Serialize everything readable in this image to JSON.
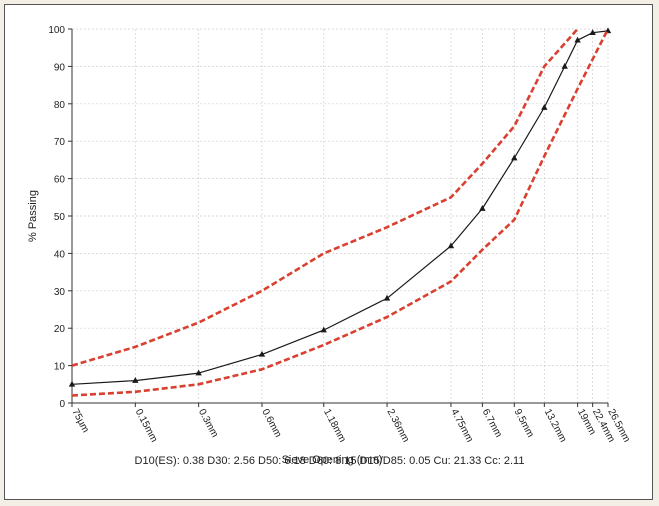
{
  "chart_data": {
    "type": "line",
    "xlabel": "Sieve Opening (mm)",
    "ylabel": "% Passing",
    "ylim": [
      0,
      100
    ],
    "yticks": [
      0,
      10,
      20,
      30,
      40,
      50,
      60,
      70,
      80,
      90,
      100
    ],
    "x_scale": "log",
    "x_ticks": [
      {
        "label": "75µm",
        "mm": 0.075
      },
      {
        "label": "0.15mm",
        "mm": 0.15
      },
      {
        "label": "0.3mm",
        "mm": 0.3
      },
      {
        "label": "0.6mm",
        "mm": 0.6
      },
      {
        "label": "1.18mm",
        "mm": 1.18
      },
      {
        "label": "2.36mm",
        "mm": 2.36
      },
      {
        "label": "4.75mm",
        "mm": 4.75
      },
      {
        "label": "6.7mm",
        "mm": 6.7
      },
      {
        "label": "9.5mm",
        "mm": 9.5
      },
      {
        "label": "13.2mm",
        "mm": 13.2
      },
      {
        "label": "19mm",
        "mm": 19
      },
      {
        "label": "22.4mm",
        "mm": 22.4
      },
      {
        "label": "26.5mm",
        "mm": 26.5
      }
    ],
    "grid": true,
    "series": [
      {
        "color": "#1a1a1a",
        "style": "solid",
        "marker": "triangle",
        "points": [
          [
            0.075,
            5
          ],
          [
            0.15,
            6
          ],
          [
            0.3,
            8
          ],
          [
            0.6,
            13
          ],
          [
            1.18,
            19.5
          ],
          [
            2.36,
            28
          ],
          [
            4.75,
            42
          ],
          [
            6.7,
            52
          ],
          [
            9.5,
            65.5
          ],
          [
            13.2,
            79
          ],
          [
            16.5,
            90
          ],
          [
            19,
            97
          ],
          [
            22.4,
            99
          ],
          [
            26.5,
            99.5
          ]
        ]
      },
      {
        "color": "#d9402f",
        "style": "dashed",
        "points": [
          [
            0.075,
            10
          ],
          [
            0.15,
            15
          ],
          [
            0.3,
            21.5
          ],
          [
            0.6,
            30
          ],
          [
            1.18,
            40
          ],
          [
            2.36,
            47
          ],
          [
            4.75,
            55
          ],
          [
            6.7,
            64
          ],
          [
            9.5,
            74
          ],
          [
            13.2,
            90
          ],
          [
            19,
            100
          ]
        ]
      },
      {
        "color": "#d9402f",
        "style": "dashed",
        "points": [
          [
            0.075,
            2
          ],
          [
            0.15,
            3
          ],
          [
            0.3,
            5
          ],
          [
            0.6,
            9
          ],
          [
            1.18,
            15.5
          ],
          [
            2.36,
            23
          ],
          [
            4.75,
            32.5
          ],
          [
            6.7,
            41
          ],
          [
            9.5,
            49
          ],
          [
            13.2,
            66
          ],
          [
            19,
            84
          ],
          [
            26.5,
            100
          ]
        ]
      }
    ]
  },
  "footer": {
    "stats": "D10(ES): 0.38  D30: 2.56  D50: 6.18  D60: 8.15  D15/D85: 0.05  Cu: 21.33  Cc: 2.11"
  }
}
